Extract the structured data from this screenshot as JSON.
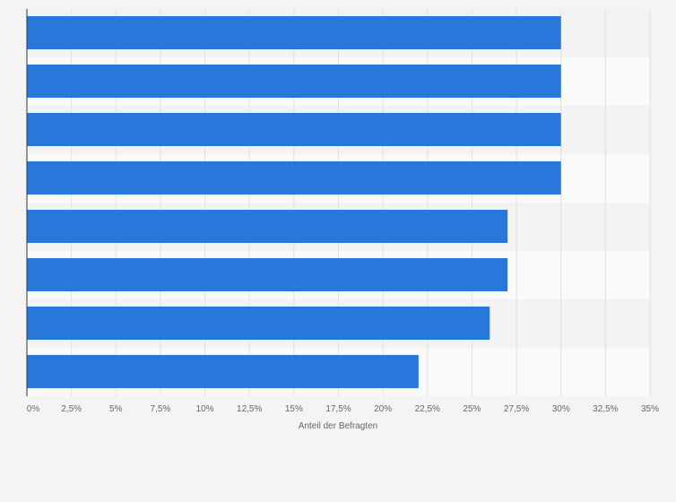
{
  "colors": {
    "bar": "#2878dc",
    "band_dark": "#f3f3f3",
    "band_light": "#fafafa",
    "grid": "#e0e0e0",
    "axis": "#333333",
    "text": "#666666"
  },
  "chart_data": {
    "type": "bar",
    "orientation": "horizontal",
    "title": "",
    "xlabel": "Anteil der Befragten",
    "ylabel": "",
    "categories": [
      "",
      "",
      "",
      "",
      "",
      "",
      "",
      ""
    ],
    "values": [
      30,
      30,
      30,
      30,
      27,
      27,
      26,
      22
    ],
    "xlim": [
      0,
      35
    ],
    "grid": true,
    "x_ticks": [
      {
        "value": 0,
        "label": "0%"
      },
      {
        "value": 2.5,
        "label": "2,5%"
      },
      {
        "value": 5,
        "label": "5%"
      },
      {
        "value": 7.5,
        "label": "7,5%"
      },
      {
        "value": 10,
        "label": "10%"
      },
      {
        "value": 12.5,
        "label": "12,5%"
      },
      {
        "value": 15,
        "label": "15%"
      },
      {
        "value": 17.5,
        "label": "17,5%"
      },
      {
        "value": 20,
        "label": "20%"
      },
      {
        "value": 22.5,
        "label": "22,5%"
      },
      {
        "value": 25,
        "label": "25%"
      },
      {
        "value": 27.5,
        "label": "27,5%"
      },
      {
        "value": 30,
        "label": "30%"
      },
      {
        "value": 32.5,
        "label": "32,5%"
      },
      {
        "value": 35,
        "label": "35%"
      }
    ]
  }
}
